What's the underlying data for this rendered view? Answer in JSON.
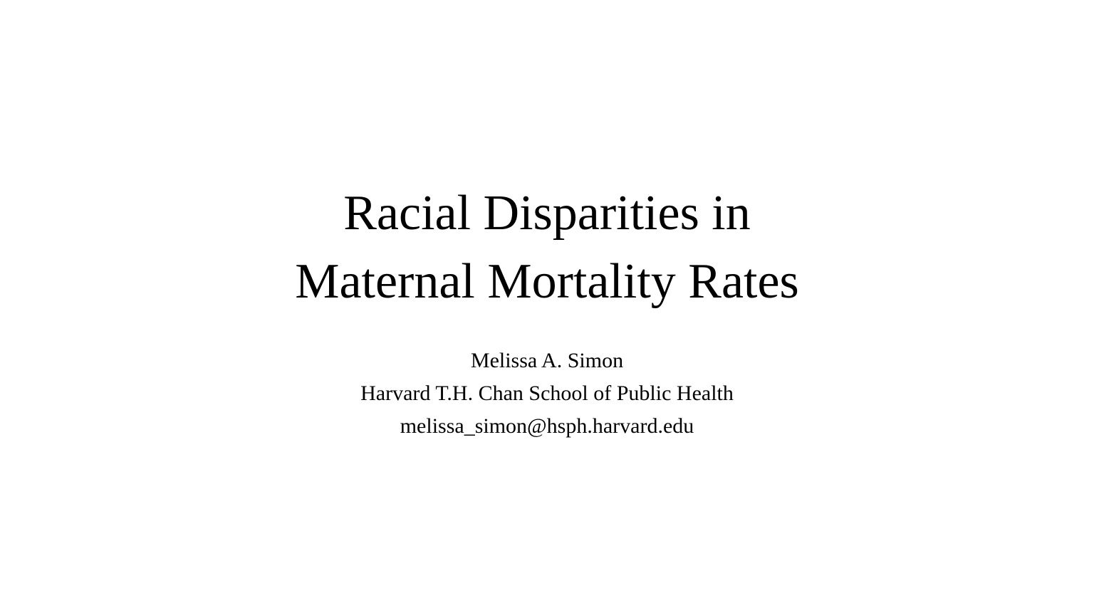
{
  "slide": {
    "title_lines": [
      "Racial Disparities in",
      "Maternal Mortality Rates"
    ],
    "author": "Melissa A. Simon",
    "affiliation": "Harvard T.H. Chan School of Public Health",
    "email": "melissa_simon@hsph.harvard.edu"
  }
}
